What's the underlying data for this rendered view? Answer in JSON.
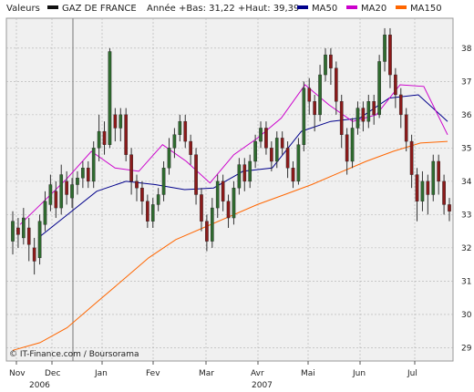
{
  "chart_data": {
    "type": "candlestick",
    "legend": {
      "label_valeurs": "Valeurs",
      "security": "GAZ DE FRANCE",
      "year_stats": "Année +Bas: 31,22 +Haut: 39,39",
      "ma50": "MA50",
      "ma20": "MA20",
      "ma150": "MA150"
    },
    "credit": "© IT-Finance.com / Boursorama",
    "colors": {
      "up_candle": "#2f6b2f",
      "down_candle": "#8b1a1a",
      "ma50": "#00008b",
      "ma20": "#cc00cc",
      "ma150": "#ff6600",
      "grid": "#b0b0b0",
      "background": "#f0f0f0"
    },
    "y_axis": {
      "range": [
        28.6,
        38.9
      ],
      "ticks": [
        29,
        30,
        31,
        32,
        33,
        34,
        35,
        36,
        37,
        38
      ]
    },
    "x_axis": {
      "months": [
        "Nov",
        "Dec",
        "Jan",
        "Fev",
        "Mar",
        "Avr",
        "Mai",
        "Jun",
        "Jul"
      ],
      "years": [
        "2006",
        "2007"
      ]
    },
    "grid": true,
    "series": {
      "ma150": [
        28.92,
        29.15,
        29.6,
        30.3,
        31.0,
        31.7,
        32.25,
        32.6,
        32.95,
        33.3,
        33.6,
        33.9,
        34.25,
        34.6,
        34.9,
        35.15,
        35.2
      ],
      "ma50": [
        32.3,
        33.0,
        33.7,
        34.0,
        33.9,
        33.75,
        33.8,
        34.3,
        34.4,
        35.5,
        35.8,
        35.9,
        36.5,
        36.6,
        35.8
      ],
      "ma20": [
        32.7,
        33.4,
        34.1,
        34.9,
        34.4,
        34.3,
        35.1,
        34.6,
        33.95,
        34.8,
        35.3,
        35.9,
        36.9,
        36.3,
        35.8,
        36.0,
        36.9,
        36.85,
        35.4
      ],
      "candles": [
        [
          32.2,
          32.8,
          31.8,
          33.1
        ],
        [
          32.6,
          32.4,
          32.0,
          32.9
        ],
        [
          32.3,
          32.9,
          32.1,
          33.2
        ],
        [
          32.6,
          32.1,
          31.6,
          32.9
        ],
        [
          32.0,
          31.6,
          31.2,
          32.3
        ],
        [
          31.7,
          32.8,
          31.5,
          33.0
        ],
        [
          32.7,
          33.4,
          32.5,
          33.7
        ],
        [
          33.3,
          33.9,
          33.1,
          34.2
        ],
        [
          33.7,
          33.2,
          32.9,
          34.0
        ],
        [
          33.2,
          34.2,
          33.0,
          34.5
        ],
        [
          34.0,
          33.6,
          33.3,
          34.3
        ],
        [
          33.5,
          33.9,
          33.2,
          34.1
        ],
        [
          33.9,
          34.1,
          33.6,
          34.3
        ],
        [
          34.1,
          34.4,
          33.8,
          34.6
        ],
        [
          34.4,
          34.0,
          33.8,
          34.6
        ],
        [
          34.0,
          35.0,
          33.8,
          35.2
        ],
        [
          35.0,
          35.5,
          34.6,
          36.0
        ],
        [
          35.5,
          35.1,
          34.8,
          35.8
        ],
        [
          35.1,
          37.9,
          35.0,
          38.0
        ],
        [
          36.0,
          35.6,
          35.2,
          36.2
        ],
        [
          35.6,
          36.0,
          35.2,
          36.2
        ],
        [
          36.0,
          34.8,
          34.6,
          36.2
        ],
        [
          34.8,
          34.0,
          33.6,
          35.0
        ],
        [
          34.0,
          33.8,
          33.4,
          34.2
        ],
        [
          33.8,
          33.4,
          33.0,
          34.0
        ],
        [
          33.4,
          32.8,
          32.6,
          33.6
        ],
        [
          32.8,
          33.3,
          32.6,
          33.5
        ],
        [
          33.3,
          33.6,
          33.1,
          33.8
        ],
        [
          33.6,
          34.4,
          33.4,
          34.6
        ],
        [
          34.4,
          35.0,
          34.2,
          35.3
        ],
        [
          35.0,
          35.4,
          34.7,
          35.6
        ],
        [
          35.4,
          35.8,
          35.2,
          36.0
        ],
        [
          35.8,
          35.2,
          35.0,
          36.0
        ],
        [
          35.2,
          34.8,
          34.5,
          35.4
        ],
        [
          34.8,
          33.6,
          33.3,
          35.0
        ],
        [
          33.6,
          32.8,
          32.5,
          33.8
        ],
        [
          32.8,
          32.2,
          31.9,
          33.0
        ],
        [
          32.2,
          33.2,
          32.0,
          33.5
        ],
        [
          33.2,
          34.0,
          32.9,
          34.2
        ],
        [
          34.0,
          33.4,
          33.1,
          34.2
        ],
        [
          33.4,
          32.9,
          32.6,
          33.6
        ],
        [
          32.9,
          33.8,
          32.7,
          34.0
        ],
        [
          33.8,
          34.5,
          33.6,
          34.7
        ],
        [
          34.5,
          34.0,
          33.7,
          34.7
        ],
        [
          34.0,
          34.6,
          33.8,
          34.8
        ],
        [
          34.6,
          35.2,
          34.4,
          35.4
        ],
        [
          35.2,
          35.6,
          35.0,
          35.8
        ],
        [
          35.6,
          35.0,
          34.8,
          35.8
        ],
        [
          35.0,
          34.6,
          34.3,
          35.2
        ],
        [
          34.6,
          35.3,
          34.4,
          35.5
        ],
        [
          35.3,
          35.0,
          34.8,
          35.5
        ],
        [
          35.0,
          34.4,
          34.1,
          35.2
        ],
        [
          34.4,
          34.0,
          33.8,
          34.6
        ],
        [
          34.0,
          35.1,
          33.9,
          35.3
        ],
        [
          35.1,
          36.8,
          34.9,
          37.0
        ],
        [
          36.8,
          36.4,
          36.0,
          37.1
        ],
        [
          36.4,
          36.0,
          35.5,
          36.6
        ],
        [
          36.0,
          37.2,
          35.8,
          37.5
        ],
        [
          37.2,
          37.8,
          37.0,
          38.0
        ],
        [
          37.8,
          37.4,
          36.9,
          38.0
        ],
        [
          37.4,
          36.4,
          36.0,
          37.6
        ],
        [
          36.4,
          35.4,
          35.0,
          36.6
        ],
        [
          35.4,
          34.6,
          34.2,
          35.6
        ],
        [
          34.6,
          35.6,
          34.4,
          35.9
        ],
        [
          35.6,
          36.2,
          35.4,
          36.4
        ],
        [
          36.2,
          35.8,
          35.5,
          36.4
        ],
        [
          35.8,
          36.4,
          35.6,
          36.6
        ],
        [
          36.4,
          36.0,
          35.7,
          36.6
        ],
        [
          36.0,
          37.6,
          35.9,
          37.8
        ],
        [
          37.6,
          38.4,
          37.3,
          38.6
        ],
        [
          38.4,
          37.2,
          36.8,
          38.6
        ],
        [
          37.2,
          36.6,
          36.2,
          37.4
        ],
        [
          36.6,
          36.0,
          35.6,
          36.8
        ],
        [
          36.0,
          35.2,
          34.9,
          36.2
        ],
        [
          35.2,
          34.2,
          33.8,
          35.4
        ],
        [
          34.2,
          33.4,
          32.8,
          34.4
        ],
        [
          33.4,
          34.0,
          33.1,
          34.3
        ],
        [
          34.0,
          33.6,
          33.0,
          34.2
        ],
        [
          33.6,
          34.6,
          33.4,
          34.8
        ],
        [
          34.6,
          34.0,
          33.6,
          34.8
        ],
        [
          34.0,
          33.3,
          33.0,
          34.2
        ],
        [
          33.3,
          33.1,
          32.8,
          33.5
        ]
      ]
    }
  }
}
